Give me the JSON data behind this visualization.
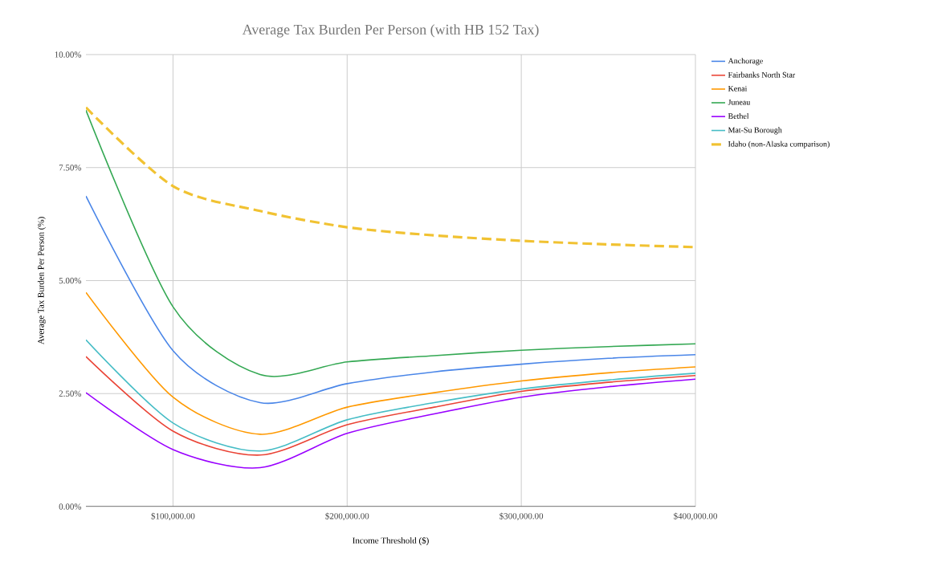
{
  "chart_data": {
    "type": "line",
    "title": "Average Tax Burden Per Person (with HB 152 Tax)",
    "xlabel": "Income Threshold ($)",
    "ylabel": "Average Tax Burden Per Person (%)",
    "x": [
      50000,
      100000,
      150000,
      200000,
      250000,
      300000,
      350000,
      400000
    ],
    "xlim": [
      50000,
      400000
    ],
    "xticks": [
      {
        "value": 100000,
        "label": "$100,000.00"
      },
      {
        "value": 200000,
        "label": "$200,000.00"
      },
      {
        "value": 300000,
        "label": "$300,000.00"
      },
      {
        "value": 400000,
        "label": "$400,000.00"
      }
    ],
    "ylim": [
      0,
      10
    ],
    "yticks": [
      {
        "value": 0,
        "label": "0.00%"
      },
      {
        "value": 2.5,
        "label": "2.50%"
      },
      {
        "value": 5,
        "label": "5.00%"
      },
      {
        "value": 7.5,
        "label": "7.50%"
      },
      {
        "value": 10,
        "label": "10.00%"
      }
    ],
    "grid": true,
    "legend": "right",
    "series": [
      {
        "name": "Anchorage",
        "color": "#4a86e8",
        "values": [
          6.87,
          3.45,
          2.3,
          2.72,
          2.98,
          3.15,
          3.28,
          3.36
        ]
      },
      {
        "name": "Fairbanks North Star",
        "color": "#ea4335",
        "values": [
          3.32,
          1.67,
          1.14,
          1.81,
          2.2,
          2.55,
          2.75,
          2.9
        ]
      },
      {
        "name": "Kenai",
        "color": "#ff9900",
        "values": [
          4.74,
          2.42,
          1.6,
          2.2,
          2.52,
          2.78,
          2.96,
          3.09
        ]
      },
      {
        "name": "Juneau",
        "color": "#34a853",
        "values": [
          8.77,
          4.42,
          2.92,
          3.2,
          3.34,
          3.46,
          3.54,
          3.6
        ]
      },
      {
        "name": "Bethel",
        "color": "#9900ff",
        "values": [
          2.52,
          1.26,
          0.86,
          1.62,
          2.05,
          2.42,
          2.65,
          2.82
        ]
      },
      {
        "name": "Mat-Su Borough",
        "color": "#46bdc6",
        "values": [
          3.69,
          1.85,
          1.23,
          1.92,
          2.3,
          2.6,
          2.8,
          2.95
        ]
      },
      {
        "name": "Idaho (non-Alaska comparison)",
        "color": "#f1c232",
        "line_style": "dashed",
        "values": [
          8.83,
          7.09,
          6.54,
          6.18,
          6.0,
          5.88,
          5.8,
          5.74
        ]
      }
    ]
  }
}
